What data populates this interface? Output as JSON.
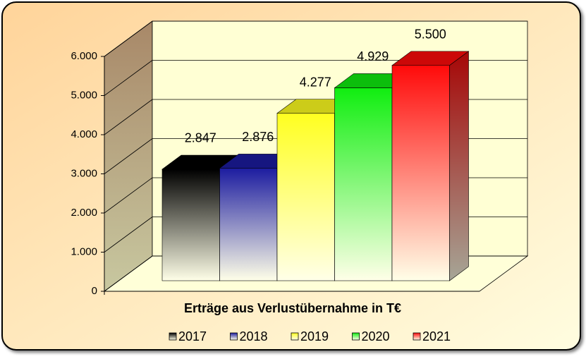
{
  "chart_data": {
    "type": "bar3d",
    "xlabel": "Erträge aus Verlustübernahme in T€",
    "categories": [
      "2017",
      "2018",
      "2019",
      "2020",
      "2021"
    ],
    "values": [
      2847,
      2876,
      4277,
      4929,
      5500
    ],
    "value_labels": [
      "2.847",
      "2.876",
      "4.277",
      "4.929",
      "5.500"
    ],
    "colors": [
      "#000000",
      "#1c1ca0",
      "#ffff20",
      "#10ee10",
      "#ff0a0a"
    ],
    "ylim": [
      0,
      6000
    ],
    "yticks": [
      0,
      {
        "value": 1000,
        "label": "1.000"
      },
      {
        "value": 2000,
        "label": "2.000"
      },
      {
        "value": 3000,
        "label": "3.000"
      },
      {
        "value": 4000,
        "label": "4.000"
      },
      {
        "value": 5000,
        "label": "5.000"
      },
      {
        "value": 6000,
        "label": "6.000"
      }
    ],
    "grid": true,
    "legend": "bottom"
  }
}
